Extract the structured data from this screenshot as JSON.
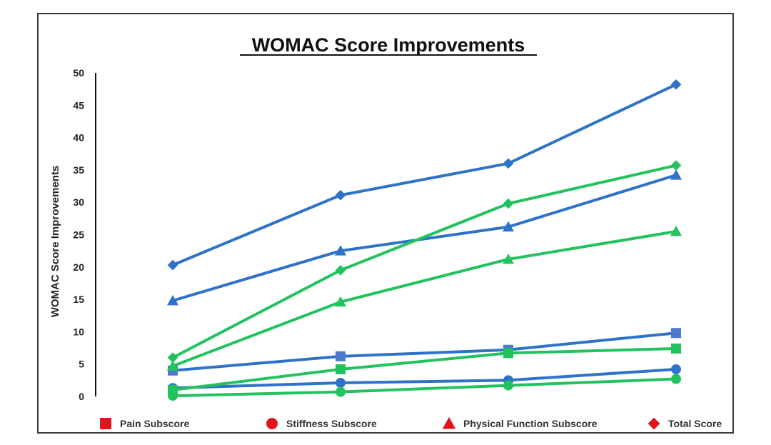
{
  "chart_data": {
    "type": "line",
    "title": "WOMAC Score Improvements",
    "ylabel": "WOMAC Score Improvements",
    "xlabel": "",
    "ylim": [
      0,
      50
    ],
    "yticks": [
      0,
      5,
      10,
      15,
      20,
      25,
      30,
      35,
      40,
      45,
      50
    ],
    "x": [
      1,
      2,
      3,
      4
    ],
    "grid": false,
    "legend_position": "bottom",
    "colors": {
      "blue": "#2f73c9",
      "green": "#22c35e",
      "legend": "#e0141e",
      "square_marker": "#4d78cc"
    },
    "legend": [
      {
        "label": "Pain Subscore",
        "marker": "square"
      },
      {
        "label": "Stiffness Subscore",
        "marker": "circle"
      },
      {
        "label": "Physical Function Subscore",
        "marker": "triangle"
      },
      {
        "label": "Total Score",
        "marker": "diamond"
      }
    ],
    "series": [
      {
        "marker": "diamond",
        "color": "blue",
        "values": [
          20.3,
          31.1,
          36.0,
          48.2
        ]
      },
      {
        "marker": "triangle",
        "color": "blue",
        "values": [
          14.8,
          22.5,
          26.2,
          34.2
        ]
      },
      {
        "marker": "square",
        "color": "blue",
        "values": [
          4.0,
          6.2,
          7.2,
          9.8
        ]
      },
      {
        "marker": "circle",
        "color": "blue",
        "values": [
          1.3,
          2.1,
          2.5,
          4.2
        ]
      },
      {
        "marker": "diamond",
        "color": "green",
        "values": [
          6.0,
          19.5,
          29.8,
          35.7
        ]
      },
      {
        "marker": "triangle",
        "color": "green",
        "values": [
          4.7,
          14.6,
          21.2,
          25.5
        ]
      },
      {
        "marker": "square",
        "color": "green",
        "values": [
          1.0,
          4.2,
          6.7,
          7.4
        ]
      },
      {
        "marker": "circle",
        "color": "green",
        "values": [
          0.1,
          0.7,
          1.7,
          2.7
        ]
      }
    ]
  }
}
